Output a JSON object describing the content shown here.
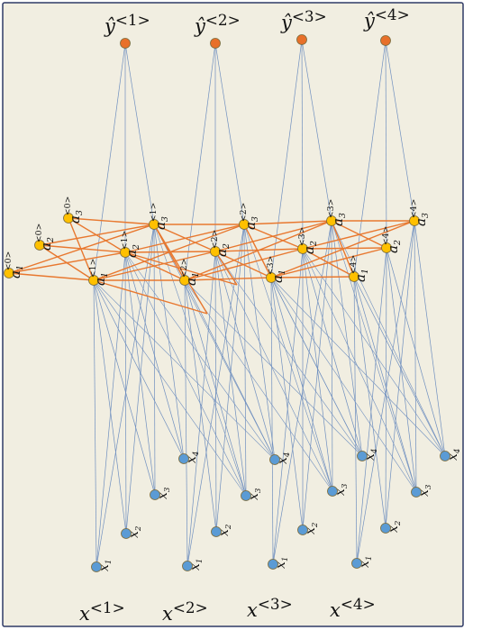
{
  "colors": {
    "background": "#f1eee1",
    "frame": "#2f3a66",
    "edge_io": "#6f8fbf",
    "edge_recurrent": "#e8782f",
    "node_output": "#e8702a",
    "node_hidden": "#ffc000",
    "node_input": "#5b9bd5",
    "node_stroke": "#7a6a3a",
    "text": "#111111"
  },
  "diagram": {
    "outputs": [
      {
        "base": "ŷ",
        "sup": "<1>"
      },
      {
        "base": "ŷ",
        "sup": "<2>"
      },
      {
        "base": "ŷ",
        "sup": "<3>"
      },
      {
        "base": "ŷ",
        "sup": "<4>"
      }
    ],
    "inputs": [
      {
        "base": "x",
        "sup": "<1>"
      },
      {
        "base": "x",
        "sup": "<2>"
      },
      {
        "base": "x",
        "sup": "<3>"
      },
      {
        "base": "x",
        "sup": "<4>"
      }
    ],
    "initial_hidden": [
      {
        "base": "a",
        "sub": "1",
        "sup": "<0>"
      },
      {
        "base": "a",
        "sub": "2",
        "sup": "<0>"
      },
      {
        "base": "a",
        "sub": "3",
        "sup": "<0>"
      }
    ],
    "hidden_steps": [
      [
        {
          "base": "a",
          "sub": "1",
          "sup": "<1>"
        },
        {
          "base": "a",
          "sub": "2",
          "sup": "<1>"
        },
        {
          "base": "a",
          "sub": "3",
          "sup": "<1>"
        }
      ],
      [
        {
          "base": "a",
          "sub": "1",
          "sup": "<2>"
        },
        {
          "base": "a",
          "sub": "2",
          "sup": "<2>"
        },
        {
          "base": "a",
          "sub": "3",
          "sup": "<2>"
        }
      ],
      [
        {
          "base": "a",
          "sub": "1",
          "sup": "<3>"
        },
        {
          "base": "a",
          "sub": "2",
          "sup": "<3>"
        },
        {
          "base": "a",
          "sub": "3",
          "sup": "<3>"
        }
      ],
      [
        {
          "base": "a",
          "sub": "1",
          "sup": "<4>"
        },
        {
          "base": "a",
          "sub": "2",
          "sup": "<4>"
        },
        {
          "base": "a",
          "sub": "3",
          "sup": "<4>"
        }
      ]
    ],
    "input_units": [
      [
        {
          "base": "x",
          "sub": "1"
        },
        {
          "base": "x",
          "sub": "2"
        },
        {
          "base": "x",
          "sub": "3"
        },
        {
          "base": "x",
          "sub": "4"
        }
      ],
      [
        {
          "base": "x",
          "sub": "1"
        },
        {
          "base": "x",
          "sub": "2"
        },
        {
          "base": "x",
          "sub": "3"
        },
        {
          "base": "x",
          "sub": "4"
        }
      ],
      [
        {
          "base": "x",
          "sub": "1"
        },
        {
          "base": "x",
          "sub": "2"
        },
        {
          "base": "x",
          "sub": "3"
        },
        {
          "base": "x",
          "sub": "4"
        }
      ],
      [
        {
          "base": "x",
          "sub": "1"
        },
        {
          "base": "x",
          "sub": "2"
        },
        {
          "base": "x",
          "sub": "3"
        },
        {
          "base": "x",
          "sub": "4"
        }
      ]
    ]
  }
}
